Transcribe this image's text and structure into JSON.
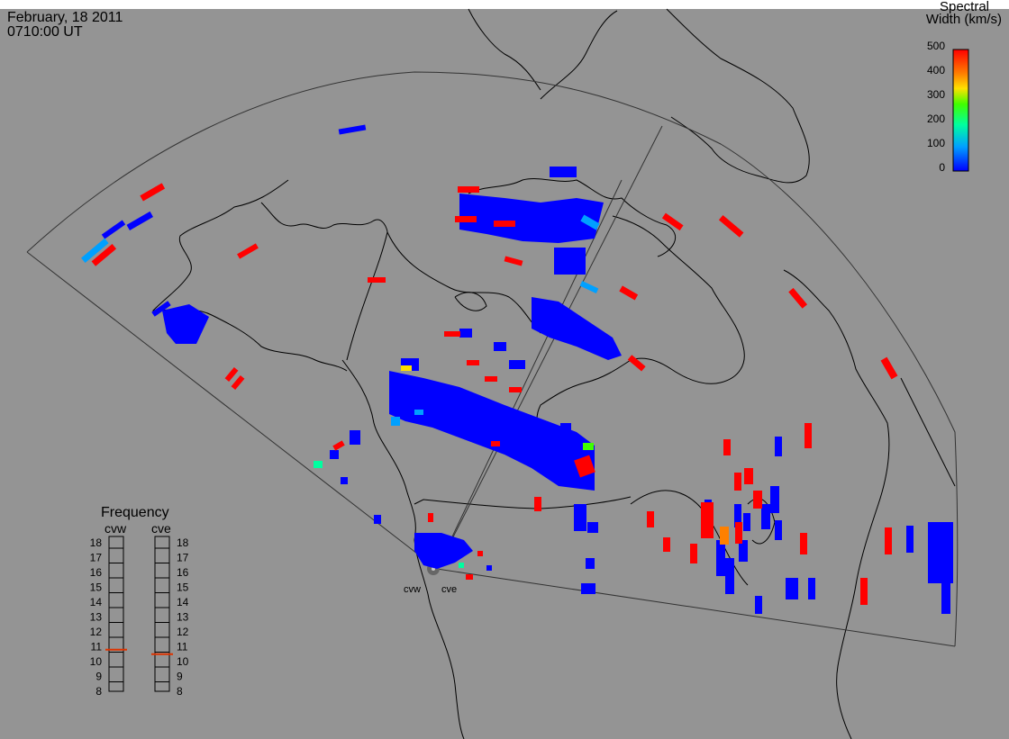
{
  "header": {
    "date": "February, 18 2011",
    "time": "0710:00 UT"
  },
  "colorbar": {
    "title_line1": "Spectral",
    "title_line2": "Width (km/s)",
    "ticks": [
      "0",
      "100",
      "200",
      "300",
      "400",
      "500"
    ]
  },
  "radar_labels": {
    "west": "cvw",
    "east": "cve"
  },
  "frequency_panel": {
    "title": "Frequency",
    "col_west": "cvw",
    "col_east": "cve",
    "ticks": [
      "18",
      "17",
      "16",
      "15",
      "14",
      "13",
      "12",
      "11",
      "10",
      "9",
      "8"
    ],
    "cvw_value_mhz": 10.8,
    "cve_value_mhz": 10.5,
    "marker_color": "#dd3300"
  },
  "colors": {
    "background": "#949494",
    "map_line": "#000000",
    "fov_line": "#333333"
  },
  "scale": {
    "colors": [
      "#0000ff",
      "#00a0ff",
      "#00ffa0",
      "#40ff00",
      "#ffe000",
      "#ff8000",
      "#ff0000"
    ]
  }
}
